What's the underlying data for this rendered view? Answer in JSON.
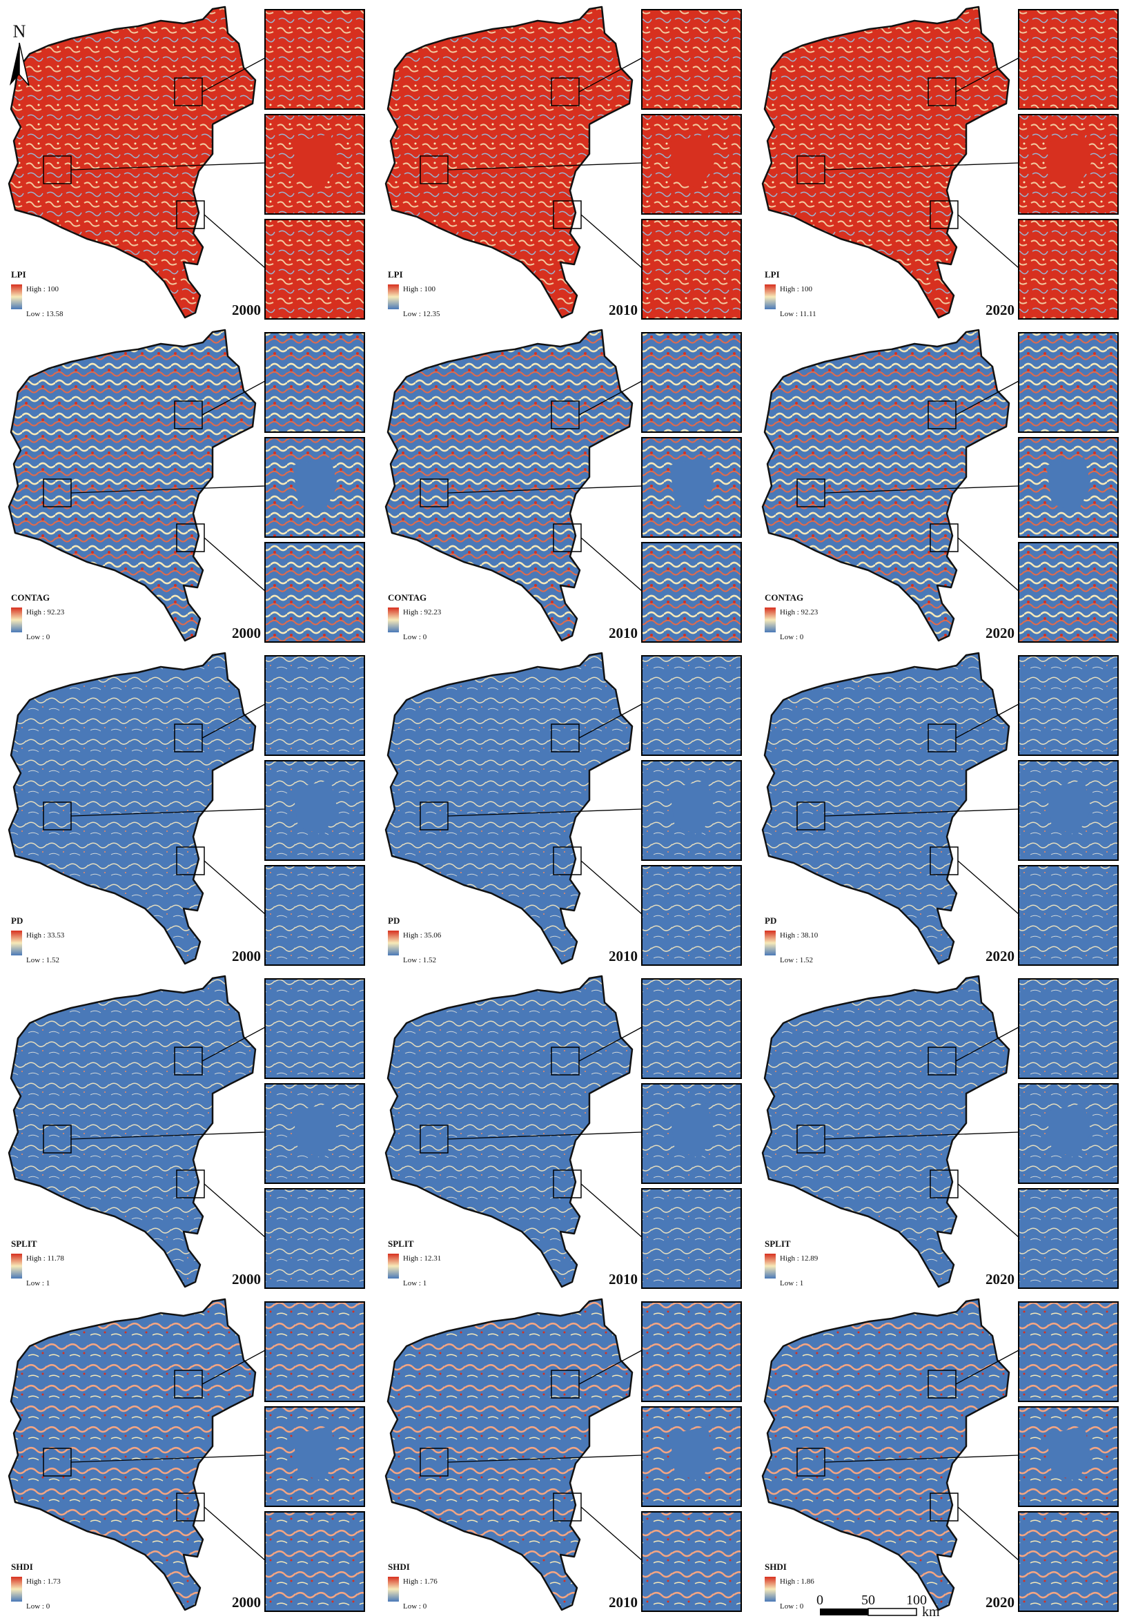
{
  "north_label": "N",
  "colors": {
    "high": "#d7301f",
    "mid": "#f7e9b8",
    "low": "#4a79b8",
    "outline": "#111111"
  },
  "rows": [
    {
      "metric": "LPI",
      "dominant": "high",
      "cells": [
        {
          "year": "2000",
          "high": "High : 100",
          "low": "Low : 13.58"
        },
        {
          "year": "2010",
          "high": "High : 100",
          "low": "Low : 12.35"
        },
        {
          "year": "2020",
          "high": "High : 100",
          "low": "Low : 11.11"
        }
      ]
    },
    {
      "metric": "CONTAG",
      "dominant": "mixed",
      "cells": [
        {
          "year": "2000",
          "high": "High : 92.23",
          "low": "Low : 0"
        },
        {
          "year": "2010",
          "high": "High : 92.23",
          "low": "Low : 0"
        },
        {
          "year": "2020",
          "high": "High : 92.23",
          "low": "Low : 0"
        }
      ]
    },
    {
      "metric": "PD",
      "dominant": "low",
      "cells": [
        {
          "year": "2000",
          "high": "High : 33.53",
          "low": "Low : 1.52"
        },
        {
          "year": "2010",
          "high": "High : 35.06",
          "low": "Low : 1.52"
        },
        {
          "year": "2020",
          "high": "High : 38.10",
          "low": "Low : 1.52"
        }
      ]
    },
    {
      "metric": "SPLIT",
      "dominant": "low",
      "cells": [
        {
          "year": "2000",
          "high": "High : 11.78",
          "low": "Low : 1"
        },
        {
          "year": "2010",
          "high": "High : 12.31",
          "low": "Low : 1"
        },
        {
          "year": "2020",
          "high": "High : 12.89",
          "low": "Low : 1"
        }
      ]
    },
    {
      "metric": "SHDI",
      "dominant": "low-warm",
      "cells": [
        {
          "year": "2000",
          "high": "High : 1.73",
          "low": "Low : 0"
        },
        {
          "year": "2010",
          "high": "High : 1.76",
          "low": "Low : 0"
        },
        {
          "year": "2020",
          "high": "High : 1.86",
          "low": "Low : 0"
        }
      ]
    }
  ],
  "scale_bar": {
    "ticks": [
      "0",
      "50",
      "100"
    ],
    "unit": "km"
  }
}
